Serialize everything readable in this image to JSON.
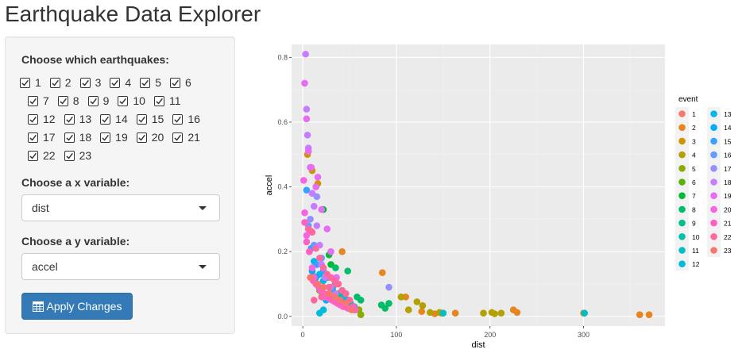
{
  "app": {
    "title": "Earthquake Data Explorer"
  },
  "sidebar": {
    "quakes_label": "Choose which earthquakes:",
    "quakes": [
      "1",
      "2",
      "3",
      "4",
      "5",
      "6",
      "7",
      "8",
      "9",
      "10",
      "11",
      "12",
      "13",
      "14",
      "15",
      "16",
      "17",
      "18",
      "19",
      "20",
      "21",
      "22",
      "23"
    ],
    "checked": true,
    "x_label": "Choose a x variable:",
    "x_value": "dist",
    "y_label": "Choose a y variable:",
    "y_value": "accel",
    "apply_label": "Apply Changes",
    "apply_icon": "table-icon",
    "button_color": "#337ab7"
  },
  "chart_data": {
    "type": "scatter",
    "xlabel": "dist",
    "ylabel": "accel",
    "xlim": [
      -12,
      387
    ],
    "ylim": [
      -0.03,
      0.84
    ],
    "x_ticks": [
      0,
      100,
      200,
      300
    ],
    "y_ticks": [
      0.0,
      0.2,
      0.4,
      0.6,
      0.8
    ],
    "y_tick_labels": [
      "0.0",
      "0.2",
      "0.4",
      "0.6",
      "0.8"
    ],
    "legend_title": "event",
    "legend_position": "right",
    "panel_background": "#ebebeb",
    "grid": true,
    "series": [
      {
        "name": "1",
        "color": "#f8766d",
        "x": [
          7.5,
          8.8
        ],
        "y": [
          0.264,
          0.263
        ]
      },
      {
        "name": "2",
        "color": "#e7851e",
        "x": [
          12.3,
          148,
          42,
          85,
          110,
          127,
          141,
          163,
          229,
          225,
          300,
          360,
          370
        ],
        "y": [
          0.123,
          0.01,
          0.2,
          0.135,
          0.06,
          0.015,
          0.008,
          0.01,
          0.012,
          0.02,
          0.01,
          0.005,
          0.005
        ]
      },
      {
        "name": "3",
        "color": "#d09400",
        "x": [
          5,
          10,
          16,
          26,
          32,
          38,
          42,
          45,
          60
        ],
        "y": [
          0.5,
          0.45,
          0.41,
          0.12,
          0.09,
          0.07,
          0.04,
          0.03,
          0.02
        ]
      },
      {
        "name": "4",
        "color": "#b2a100",
        "x": [
          105,
          113,
          122,
          128,
          136,
          146,
          193,
          202,
          205,
          212
        ],
        "y": [
          0.06,
          0.02,
          0.045,
          0.033,
          0.012,
          0.012,
          0.01,
          0.012,
          0.008,
          0.01
        ]
      },
      {
        "name": "5",
        "color": "#8aab00",
        "x": [
          55,
          60,
          62
        ],
        "y": [
          0.02,
          0.02,
          0.005
        ]
      },
      {
        "name": "6",
        "color": "#55b400",
        "x": [
          18,
          20,
          23
        ],
        "y": [
          0.08,
          0.075,
          0.07
        ]
      },
      {
        "name": "7",
        "color": "#00ba38",
        "x": [
          22,
          28,
          30,
          35,
          42,
          48
        ],
        "y": [
          0.33,
          0.19,
          0.16,
          0.1,
          0.08,
          0.05
        ]
      },
      {
        "name": "8",
        "color": "#00be67",
        "x": [
          35,
          48,
          58,
          62,
          84,
          88,
          92
        ],
        "y": [
          0.15,
          0.14,
          0.06,
          0.05,
          0.035,
          0.025,
          0.04
        ]
      },
      {
        "name": "9",
        "color": "#00c08b",
        "x": [
          26,
          31,
          42,
          51
        ],
        "y": [
          0.12,
          0.09,
          0.06,
          0.04
        ]
      },
      {
        "name": "10",
        "color": "#00c1aa",
        "x": [
          40,
          44,
          55
        ],
        "y": [
          0.07,
          0.06,
          0.03
        ]
      },
      {
        "name": "11",
        "color": "#00bfc4",
        "x": [
          150,
          301
        ],
        "y": [
          0.01,
          0.01
        ]
      },
      {
        "name": "12",
        "color": "#00bbda",
        "x": [
          18,
          22,
          45
        ],
        "y": [
          0.01,
          0.02,
          0.055
        ]
      },
      {
        "name": "13",
        "color": "#00b6eb",
        "x": [
          12,
          18,
          22,
          28,
          32
        ],
        "y": [
          0.17,
          0.13,
          0.11,
          0.09,
          0.08
        ]
      },
      {
        "name": "14",
        "color": "#00acfc",
        "x": [
          10,
          14,
          16,
          25
        ],
        "y": [
          0.14,
          0.12,
          0.1,
          0.05
        ]
      },
      {
        "name": "15",
        "color": "#35a2ff",
        "x": [
          4,
          9,
          15,
          22
        ],
        "y": [
          0.39,
          0.21,
          0.16,
          0.14
        ]
      },
      {
        "name": "16",
        "color": "#619cff",
        "x": [
          6,
          12,
          20,
          30
        ],
        "y": [
          0.28,
          0.22,
          0.18,
          0.12
        ]
      },
      {
        "name": "17",
        "color": "#9590ff",
        "x": [
          92,
          15,
          8
        ],
        "y": [
          0.09,
          0.37,
          0.3
        ]
      },
      {
        "name": "18",
        "color": "#c77cff",
        "x": [
          3,
          4,
          5,
          6,
          8,
          10,
          12,
          15,
          18,
          20,
          24,
          30,
          35
        ],
        "y": [
          0.81,
          0.64,
          0.56,
          0.52,
          0.46,
          0.38,
          0.34,
          0.28,
          0.22,
          0.16,
          0.12,
          0.09,
          0.07
        ]
      },
      {
        "name": "19",
        "color": "#e76bf3",
        "x": [
          2,
          4,
          6,
          9,
          14,
          16,
          20,
          26,
          30,
          36
        ],
        "y": [
          0.72,
          0.61,
          0.51,
          0.46,
          0.4,
          0.43,
          0.33,
          0.27,
          0.2,
          0.12
        ]
      },
      {
        "name": "20",
        "color": "#f564e3",
        "x": [
          1,
          2,
          4,
          7,
          10,
          12,
          15,
          19,
          24,
          38
        ],
        "y": [
          0.42,
          0.32,
          0.25,
          0.2,
          0.15,
          0.12,
          0.1,
          0.08,
          0.06,
          0.04
        ]
      },
      {
        "name": "21",
        "color": "#ff61c3",
        "x": [
          2,
          4,
          7,
          9,
          11,
          14,
          17,
          20,
          23,
          26,
          28,
          31,
          34,
          37,
          40,
          43,
          46,
          48,
          51,
          54,
          56
        ],
        "y": [
          0.29,
          0.23,
          0.2,
          0.12,
          0.11,
          0.1,
          0.09,
          0.08,
          0.07,
          0.06,
          0.055,
          0.05,
          0.045,
          0.04,
          0.035,
          0.03,
          0.03,
          0.025,
          0.025,
          0.03,
          0.02
        ]
      },
      {
        "name": "22",
        "color": "#ff689e",
        "x": [
          6,
          10,
          14,
          18,
          22,
          26,
          30,
          34,
          38,
          42,
          46,
          50,
          12,
          20,
          28,
          36
        ],
        "y": [
          0.27,
          0.26,
          0.21,
          0.18,
          0.15,
          0.13,
          0.12,
          0.11,
          0.1,
          0.08,
          0.07,
          0.05,
          0.05,
          0.06,
          0.09,
          0.1
        ]
      },
      {
        "name": "23",
        "color": "#f8766d",
        "x": [
          8,
          16,
          22,
          28,
          34,
          40,
          46,
          52
        ],
        "y": [
          0.12,
          0.1,
          0.09,
          0.07,
          0.06,
          0.05,
          0.04,
          0.02
        ]
      }
    ]
  }
}
